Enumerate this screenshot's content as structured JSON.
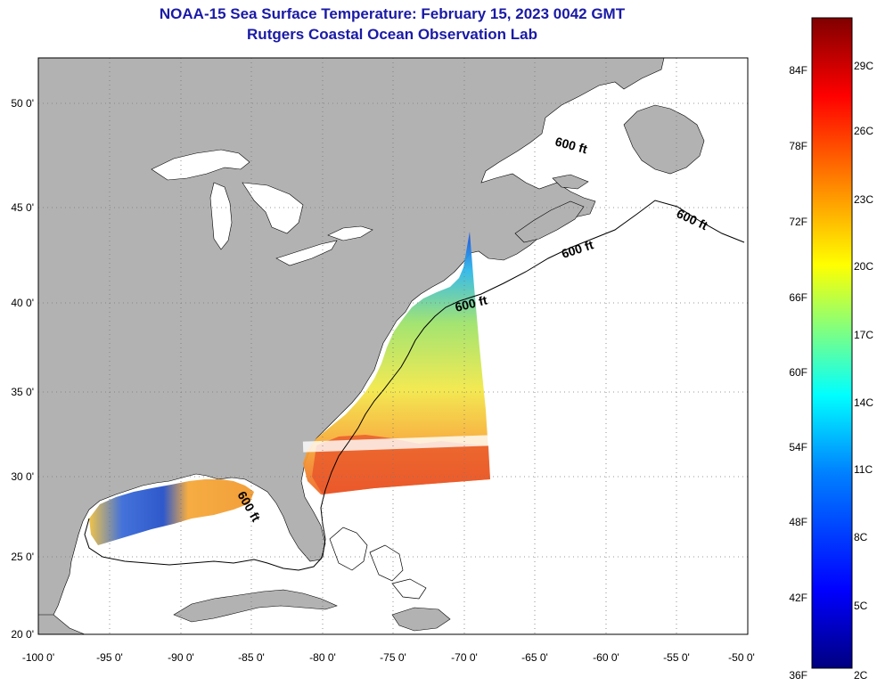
{
  "title": "NOAA-15 Sea Surface Temperature:  February 15, 2023 0042 GMT",
  "subtitle": "Rutgers Coastal Ocean Observation Lab",
  "map": {
    "lon_ticks": [
      "-100 0'",
      "-95 0'",
      "-90 0'",
      "-85 0'",
      "-80 0'",
      "-75 0'",
      "-70 0'",
      "-65 0'",
      "-60 0'",
      "-55 0'",
      "-50 0'"
    ],
    "lat_ticks": [
      "50 0'",
      "45 0'",
      "40 0'",
      "35 0'",
      "30 0'",
      "25 0'",
      "20 0'"
    ],
    "lon_range": [
      -100,
      -50
    ],
    "lat_range": [
      20,
      52.5
    ],
    "grid": "dotted",
    "land_color": "#b2b2b2",
    "ocean_color": "#ffffff"
  },
  "contour_labels": [
    "600 ft",
    "600 ft",
    "600 ft",
    "600 ft",
    "600 ft"
  ],
  "colorbar": {
    "fahrenheit": [
      "84F",
      "78F",
      "72F",
      "66F",
      "60F",
      "54F",
      "48F",
      "42F",
      "36F"
    ],
    "celsius": [
      "29C",
      "26C",
      "23C",
      "20C",
      "17C",
      "14C",
      "11C",
      "8C",
      "5C",
      "2C"
    ],
    "colors": [
      "#800000",
      "#ff0000",
      "#ff8000",
      "#ffff00",
      "#80ff80",
      "#00ffff",
      "#0080ff",
      "#0000ff",
      "#000080"
    ]
  }
}
